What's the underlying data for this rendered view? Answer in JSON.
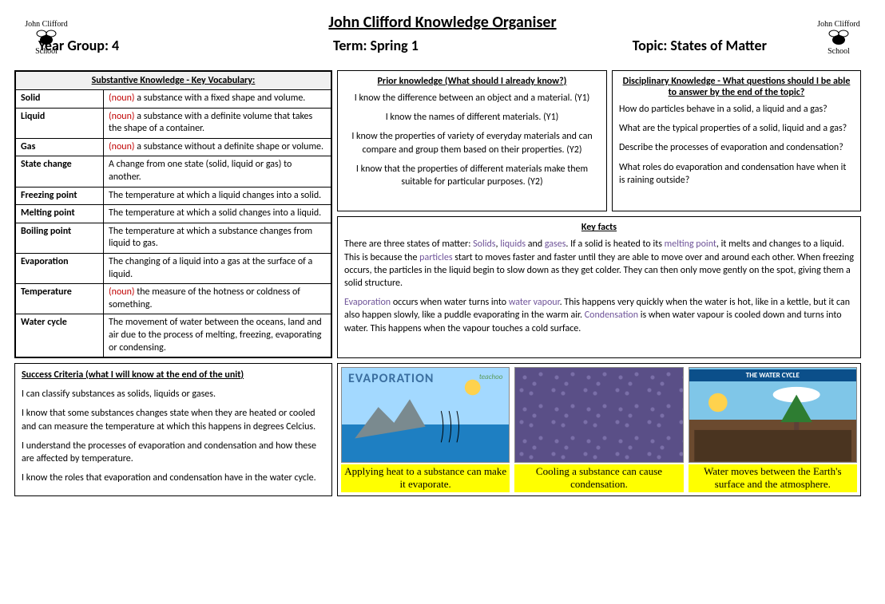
{
  "header": {
    "school_arc_top": "John Clifford",
    "school_arc_bottom": "School",
    "main_title": "John Clifford Knowledge Organiser",
    "year_group_label": "Year Group: 4",
    "term_label": "Term: Spring 1",
    "topic_label": "Topic: States of Matter"
  },
  "vocab": {
    "title": "Substantive Knowledge - Key Vocabulary:",
    "noun_tag": "(noun)",
    "rows": [
      {
        "term": "Solid",
        "noun": true,
        "def": "a substance with a fixed shape and volume."
      },
      {
        "term": "Liquid",
        "noun": true,
        "def": "a substance with a definite volume that takes the shape of a container."
      },
      {
        "term": "Gas",
        "noun": true,
        "def": "a substance without a definite shape or volume."
      },
      {
        "term": "State change",
        "noun": false,
        "def": "A change from one state (solid, liquid or gas) to another."
      },
      {
        "term": "Freezing point",
        "noun": false,
        "def": "The temperature at which a liquid changes into a solid."
      },
      {
        "term": "Melting point",
        "noun": false,
        "def": "The temperature at which a solid changes into a liquid."
      },
      {
        "term": "Boiling point",
        "noun": false,
        "def": "The temperature at which a substance changes from liquid to gas."
      },
      {
        "term": "Evaporation",
        "noun": false,
        "def": "The changing of a liquid into a gas at the surface of a liquid."
      },
      {
        "term": "Temperature",
        "noun": true,
        "def": "the measure of the hotness or coldness of something."
      },
      {
        "term": "Water cycle",
        "noun": false,
        "def": "The movement of water between the oceans, land and air due to the process of melting, freezing, evaporating or condensing."
      }
    ]
  },
  "prior": {
    "title": "Prior knowledge (What should I already know?)",
    "items": [
      "I know the difference between an object and a material. (Y1)",
      "I know the names of different materials. (Y1)",
      "I know the properties of variety of everyday materials and can compare and group them based on their properties. (Y2)",
      "I know that the properties of different materials make them suitable for particular purposes. (Y2)"
    ]
  },
  "disciplinary": {
    "title": "Disciplinary Knowledge - What questions should I be able to answer by the end of the topic?",
    "items": [
      "How do particles behave in a solid, a liquid and a gas?",
      "What are the typical properties of a solid, liquid and a gas?",
      "Describe the processes of evaporation and condensation?",
      "What roles do evaporation and condensation have when it is raining outside?"
    ]
  },
  "keyfacts": {
    "title": "Key facts",
    "para1_pre": "There are three states of matter: ",
    "hl_solids": "Solids",
    "sep1": ", ",
    "hl_liquids": "liquids",
    "sep2": " and ",
    "hl_gases": "gases",
    "para1_mid1": ". If a solid is heated to its ",
    "hl_melting": "melting point",
    "para1_mid2": ", it melts and changes to a liquid. This is because the ",
    "hl_particles": "particles",
    "para1_end": " start to moves faster and faster until they are able to move over and around each other. When freezing occurs, the particles in the liquid begin to slow down as they get colder. They can then only move gently on the spot, giving them a solid structure.",
    "hl_evap": "Evaporation",
    "para2_mid1": " occurs when water turns into ",
    "hl_vapour": "water vapour",
    "para2_mid2": ". This happens very quickly when the water is hot, like in a kettle, but it can also happen slowly, like a puddle evaporating in the warm air. ",
    "hl_cond": "Condensation",
    "para2_end": " is when water vapour is cooled down and turns into water. This happens when the vapour touches a cold surface."
  },
  "success": {
    "title": "Success Criteria (what I will know at the end of the unit)",
    "items": [
      "I can classify substances as solids, liquids or gases.",
      "I know that some substances changes state when  they are heated or cooled and can measure the temperature at which this happens in degrees Celcius.",
      "I understand the processes of evaporation and condensation and how these are affected by temperature.",
      "I know the roles that evaporation and condensation have in the water cycle."
    ]
  },
  "images": {
    "evap_label": "EVAPORATION",
    "evap_credit": "teachoo",
    "cycle_banner": "THE WATER CYCLE",
    "captions": [
      "Applying heat to a substance can make it evaporate.",
      "Cooling a substance can cause condensation.",
      "Water moves between the Earth's surface and the atmosphere."
    ]
  },
  "colors": {
    "noun_color": "#c00000",
    "highlight_text": "#6f5499",
    "caption_bg": "#ffff00"
  }
}
